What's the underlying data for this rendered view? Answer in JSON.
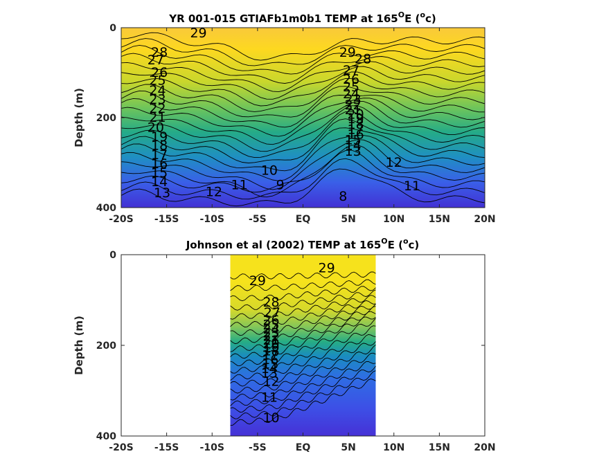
{
  "colors": {
    "warm": "#fdd820",
    "mid": "#2fb57e",
    "cool": "#3f55e6",
    "deep": "#4231d4",
    "contour": "#000000",
    "axis": "#262626"
  },
  "chart_data": [
    {
      "type": "heatmap",
      "title": "YR 001-015 GTIAFb1m0b1 TEMP at 165",
      "title_sup": "O",
      "title_tail": "E (",
      "title_sup2": "o",
      "title_end": "c)",
      "ylabel": "Depth (m)",
      "xlim": [
        -20,
        20
      ],
      "ylim": [
        0,
        400
      ],
      "x_ticks": [
        -20,
        -15,
        -10,
        -5,
        0,
        5,
        10,
        15,
        20
      ],
      "x_tick_labels": [
        "-20S",
        "-15S",
        "-10S",
        "-5S",
        "EQ",
        "5N",
        "10N",
        "15N",
        "20N"
      ],
      "y_ticks": [
        0,
        200,
        400
      ],
      "y_tick_labels": [
        "0",
        "200",
        "400"
      ],
      "lat_coverage": [
        -20,
        20
      ],
      "contour_levels": [
        8,
        9,
        10,
        11,
        12,
        13,
        14,
        15,
        16,
        17,
        18,
        19,
        20,
        21,
        22,
        23,
        24,
        25,
        26,
        27,
        28,
        29
      ],
      "contour_labels": [
        {
          "text": "29",
          "lat": -11.5,
          "depth": 12
        },
        {
          "text": "28",
          "lat": -15.8,
          "depth": 55
        },
        {
          "text": "27",
          "lat": -16.2,
          "depth": 72
        },
        {
          "text": "26",
          "lat": -15.8,
          "depth": 100
        },
        {
          "text": "25",
          "lat": -16.0,
          "depth": 118
        },
        {
          "text": "24",
          "lat": -16.0,
          "depth": 140
        },
        {
          "text": "23",
          "lat": -16.0,
          "depth": 160
        },
        {
          "text": "22",
          "lat": -16.0,
          "depth": 180
        },
        {
          "text": "21",
          "lat": -16.0,
          "depth": 200
        },
        {
          "text": "20",
          "lat": -16.2,
          "depth": 222
        },
        {
          "text": "19",
          "lat": -15.8,
          "depth": 243
        },
        {
          "text": "18",
          "lat": -15.8,
          "depth": 262
        },
        {
          "text": "17",
          "lat": -15.8,
          "depth": 283
        },
        {
          "text": "16",
          "lat": -15.8,
          "depth": 303
        },
        {
          "text": "15",
          "lat": -15.8,
          "depth": 323
        },
        {
          "text": "14",
          "lat": -15.8,
          "depth": 343
        },
        {
          "text": "13",
          "lat": -15.5,
          "depth": 368
        },
        {
          "text": "12",
          "lat": -9.8,
          "depth": 365
        },
        {
          "text": "11",
          "lat": -7.0,
          "depth": 350
        },
        {
          "text": "10",
          "lat": -3.7,
          "depth": 318
        },
        {
          "text": "9",
          "lat": -2.5,
          "depth": 350
        },
        {
          "text": "8",
          "lat": 4.4,
          "depth": 375
        },
        {
          "text": "29",
          "lat": 4.9,
          "depth": 55
        },
        {
          "text": "28",
          "lat": 6.6,
          "depth": 70
        },
        {
          "text": "27",
          "lat": 5.3,
          "depth": 95
        },
        {
          "text": "26",
          "lat": 5.3,
          "depth": 115
        },
        {
          "text": "25",
          "lat": 5.3,
          "depth": 132
        },
        {
          "text": "24",
          "lat": 5.3,
          "depth": 148
        },
        {
          "text": "23",
          "lat": 5.5,
          "depth": 160
        },
        {
          "text": "22",
          "lat": 5.5,
          "depth": 172
        },
        {
          "text": "21",
          "lat": 5.5,
          "depth": 183
        },
        {
          "text": "20",
          "lat": 5.8,
          "depth": 193
        },
        {
          "text": "19",
          "lat": 5.8,
          "depth": 203
        },
        {
          "text": "18",
          "lat": 5.8,
          "depth": 215
        },
        {
          "text": "17",
          "lat": 5.8,
          "depth": 227
        },
        {
          "text": "16",
          "lat": 5.8,
          "depth": 238
        },
        {
          "text": "15",
          "lat": 5.5,
          "depth": 250
        },
        {
          "text": "14",
          "lat": 5.5,
          "depth": 262
        },
        {
          "text": "13",
          "lat": 5.5,
          "depth": 275
        },
        {
          "text": "12",
          "lat": 10.0,
          "depth": 300
        },
        {
          "text": "11",
          "lat": 12.0,
          "depth": 352
        }
      ]
    },
    {
      "type": "heatmap",
      "title": "Johnson et al (2002) TEMP at 165",
      "title_sup": "O",
      "title_tail": "E (",
      "title_sup2": "o",
      "title_end": "c)",
      "ylabel": "Depth (m)",
      "xlim": [
        -20,
        20
      ],
      "ylim": [
        0,
        400
      ],
      "x_ticks": [
        -20,
        -15,
        -10,
        -5,
        0,
        5,
        10,
        15,
        20
      ],
      "x_tick_labels": [
        "-20S",
        "-15S",
        "-10S",
        "-5S",
        "EQ",
        "5N",
        "10N",
        "15N",
        "20N"
      ],
      "y_ticks": [
        0,
        200,
        400
      ],
      "y_tick_labels": [
        "0",
        "200",
        "400"
      ],
      "lat_coverage": [
        -8,
        8
      ],
      "contour_levels": [
        10,
        11,
        12,
        13,
        14,
        15,
        16,
        17,
        18,
        19,
        20,
        21,
        22,
        23,
        24,
        25,
        26,
        27,
        28,
        29
      ],
      "contour_labels": [
        {
          "text": "29",
          "lat": -5.0,
          "depth": 58
        },
        {
          "text": "29",
          "lat": 2.6,
          "depth": 30
        },
        {
          "text": "28",
          "lat": -3.5,
          "depth": 105
        },
        {
          "text": "27",
          "lat": -3.4,
          "depth": 128
        },
        {
          "text": "26",
          "lat": -3.5,
          "depth": 145
        },
        {
          "text": "25",
          "lat": -3.5,
          "depth": 155
        },
        {
          "text": "24",
          "lat": -3.5,
          "depth": 165
        },
        {
          "text": "23",
          "lat": -3.5,
          "depth": 173
        },
        {
          "text": "22",
          "lat": -3.5,
          "depth": 181
        },
        {
          "text": "21",
          "lat": -3.5,
          "depth": 189
        },
        {
          "text": "20",
          "lat": -3.5,
          "depth": 197
        },
        {
          "text": "19",
          "lat": -3.5,
          "depth": 205
        },
        {
          "text": "18",
          "lat": -3.5,
          "depth": 213
        },
        {
          "text": "17",
          "lat": -3.6,
          "depth": 222
        },
        {
          "text": "16",
          "lat": -3.6,
          "depth": 232
        },
        {
          "text": "15",
          "lat": -3.6,
          "depth": 242
        },
        {
          "text": "14",
          "lat": -3.7,
          "depth": 252
        },
        {
          "text": "13",
          "lat": -3.7,
          "depth": 262
        },
        {
          "text": "12",
          "lat": -3.5,
          "depth": 280
        },
        {
          "text": "11",
          "lat": -3.7,
          "depth": 315
        },
        {
          "text": "10",
          "lat": -3.5,
          "depth": 360
        }
      ]
    }
  ]
}
